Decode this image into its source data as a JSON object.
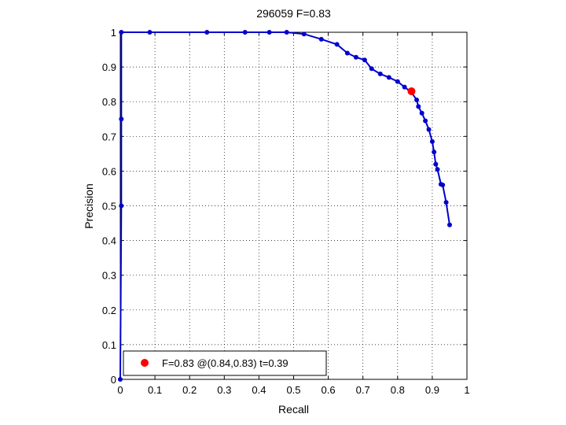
{
  "chart_data": {
    "type": "line",
    "title": "296059 F=0.83",
    "xlabel": "Recall",
    "ylabel": "Precision",
    "xlim": [
      0,
      1
    ],
    "ylim": [
      0,
      1
    ],
    "xticks": [
      "0",
      "0.1",
      "0.2",
      "0.3",
      "0.4",
      "0.5",
      "0.6",
      "0.7",
      "0.8",
      "0.9",
      "1"
    ],
    "yticks": [
      "0",
      "0.1",
      "0.2",
      "0.3",
      "0.4",
      "0.5",
      "0.6",
      "0.7",
      "0.8",
      "0.9",
      "1"
    ],
    "grid": true,
    "legend_position": "bottom-left",
    "series": [
      {
        "color": "#0000cc",
        "x": [
          0.0,
          0.003,
          0.003,
          0.003,
          0.085,
          0.25,
          0.36,
          0.43,
          0.48,
          0.53,
          0.58,
          0.625,
          0.655,
          0.68,
          0.705,
          0.725,
          0.75,
          0.775,
          0.8,
          0.82,
          0.84,
          0.855,
          0.86,
          0.87,
          0.88,
          0.89,
          0.9,
          0.905,
          0.91,
          0.915,
          0.925,
          0.93,
          0.94,
          0.95
        ],
        "y": [
          0.0,
          0.5,
          0.75,
          1.0,
          1.0,
          1.0,
          1.0,
          1.0,
          1.0,
          0.995,
          0.98,
          0.965,
          0.94,
          0.928,
          0.92,
          0.895,
          0.88,
          0.87,
          0.858,
          0.842,
          0.827,
          0.805,
          0.786,
          0.767,
          0.745,
          0.72,
          0.685,
          0.655,
          0.62,
          0.605,
          0.562,
          0.56,
          0.51,
          0.445
        ]
      }
    ],
    "highlight": {
      "x": 0.84,
      "y": 0.83,
      "color": "#ff0000"
    },
    "legend": {
      "label": "F=0.83 @(0.84,0.83) t=0.39",
      "marker_color": "#ff0000"
    }
  }
}
